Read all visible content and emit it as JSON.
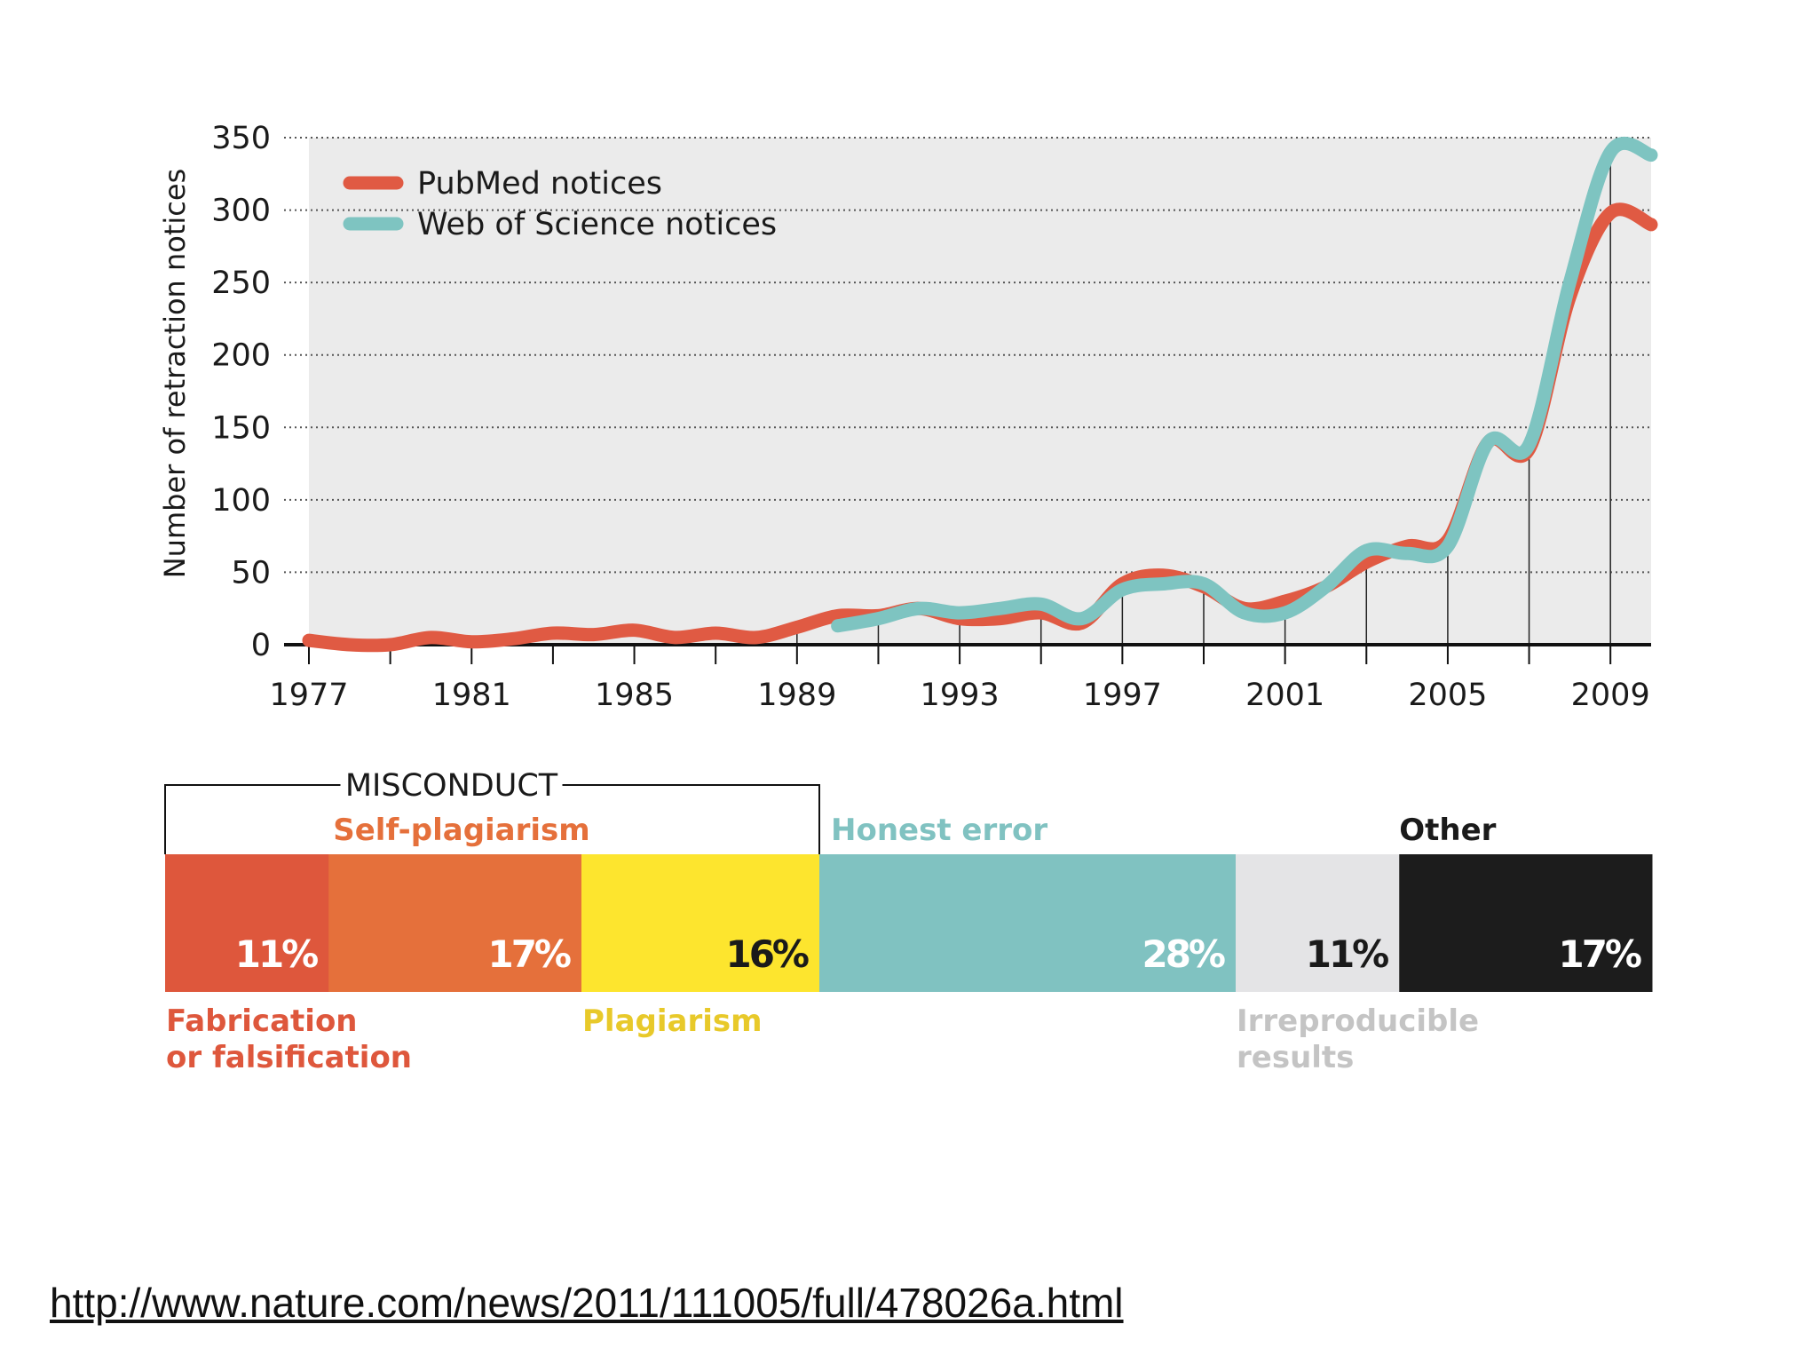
{
  "chart_data": [
    {
      "type": "line",
      "title": "",
      "xlabel": "",
      "ylabel": "Number of retraction notices",
      "xlim": [
        1977,
        2010
      ],
      "ylim": [
        0,
        350
      ],
      "x_ticks": [
        "1977",
        "1981",
        "1985",
        "1989",
        "1993",
        "1997",
        "2001",
        "2005",
        "2009"
      ],
      "y_ticks": [
        "0",
        "50",
        "100",
        "150",
        "200",
        "250",
        "300",
        "350"
      ],
      "grid": "horizontal dotted",
      "legend_position": "top-left",
      "series": [
        {
          "name": "PubMed notices",
          "color": "#e05a43",
          "x": [
            1977,
            1978,
            1979,
            1980,
            1981,
            1982,
            1983,
            1984,
            1985,
            1986,
            1987,
            1988,
            1989,
            1990,
            1991,
            1992,
            1993,
            1994,
            1995,
            1996,
            1997,
            1998,
            1999,
            2000,
            2001,
            2002,
            2003,
            2004,
            2005,
            2006,
            2007,
            2008,
            2009,
            2010
          ],
          "values": [
            3,
            0,
            0,
            5,
            2,
            4,
            8,
            7,
            10,
            5,
            8,
            5,
            12,
            20,
            20,
            25,
            18,
            18,
            22,
            15,
            42,
            48,
            40,
            25,
            30,
            40,
            57,
            68,
            72,
            140,
            135,
            240,
            298,
            290
          ]
        },
        {
          "name": "Web of Science notices",
          "color": "#7ec4c1",
          "x": [
            1990,
            1991,
            1992,
            1993,
            1994,
            1995,
            1996,
            1997,
            1998,
            1999,
            2000,
            2001,
            2002,
            2003,
            2004,
            2005,
            2006,
            2007,
            2008,
            2009,
            2010
          ],
          "values": [
            13,
            18,
            25,
            22,
            25,
            28,
            18,
            38,
            42,
            42,
            22,
            22,
            40,
            65,
            63,
            68,
            140,
            138,
            250,
            340,
            338
          ]
        }
      ]
    },
    {
      "type": "bar",
      "orientation": "horizontal-stacked",
      "title": "",
      "group_label": "MISCONDUCT",
      "categories": [
        "Fabrication or falsification",
        "Self-plagiarism",
        "Plagiarism",
        "Honest error",
        "Irreproducible results",
        "Other"
      ],
      "values": [
        11,
        17,
        16,
        28,
        11,
        17
      ],
      "value_labels": [
        "11%",
        "17%",
        "16%",
        "28%",
        "11%",
        "17%"
      ],
      "label_lines": [
        [
          "Fabrication",
          "or falsification"
        ],
        [
          "Self-plagiarism"
        ],
        [
          "Plagiarism"
        ],
        [
          "Honest error"
        ],
        [
          "Irreproducible",
          "results"
        ],
        [
          "Other"
        ]
      ],
      "label_positions": [
        "below",
        "above",
        "below",
        "above",
        "below",
        "above"
      ],
      "colors": [
        "#de573c",
        "#e5703b",
        "#fde52e",
        "#80c2c1",
        "#e4e4e6",
        "#1c1c1c"
      ],
      "label_colors": [
        "#de573c",
        "#e5703b",
        "#e8c92a",
        "#80c2c1",
        "#c4c4c4",
        "#1a1a1a"
      ],
      "pct_colors": [
        "#ffffff",
        "#ffffff",
        "#1a1a1a",
        "#ffffff",
        "#1a1a1a",
        "#ffffff"
      ],
      "misconduct_members": [
        "Fabrication or falsification",
        "Self-plagiarism",
        "Plagiarism"
      ]
    }
  ],
  "source_url": "http://www.nature.com/news/2011/111005/full/478026a.html"
}
